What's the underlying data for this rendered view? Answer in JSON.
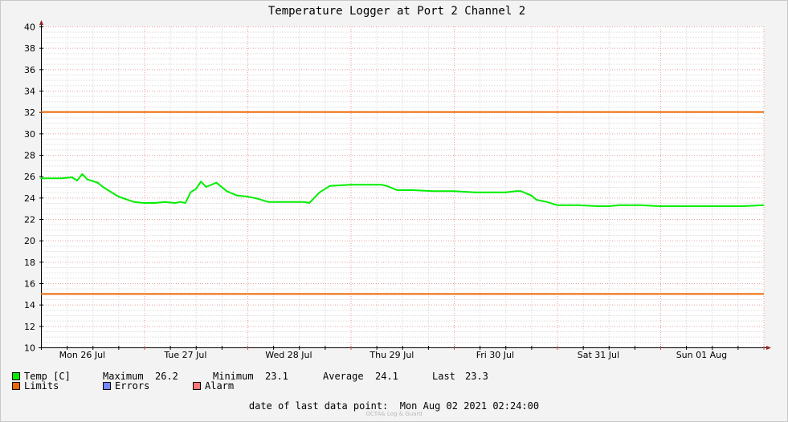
{
  "chart_data": {
    "type": "line",
    "title": "Temperature Logger at Port 2 Channel 2",
    "ylim": [
      10,
      40
    ],
    "yticks": [
      10,
      12,
      14,
      16,
      18,
      20,
      22,
      24,
      26,
      28,
      30,
      32,
      34,
      36,
      38,
      40
    ],
    "xlabels": [
      "Mon 26 Jul",
      "Tue 27 Jul",
      "Wed 28 Jul",
      "Thu 29 Jul",
      "Fri 30 Jul",
      "Sat 31 Jul",
      "Sun 01 Aug"
    ],
    "grid": true,
    "x_days": [
      0,
      0.2,
      0.3,
      0.35,
      0.4,
      0.45,
      0.55,
      0.6,
      0.7,
      0.75,
      0.9,
      1.0,
      1.1,
      1.2,
      1.3,
      1.35,
      1.4,
      1.45,
      1.5,
      1.55,
      1.6,
      1.7,
      1.8,
      1.9,
      2.0,
      2.1,
      2.2,
      2.3,
      2.4,
      2.5,
      2.55,
      2.6,
      2.65,
      2.7,
      2.8,
      3.0,
      3.2,
      3.3,
      3.35,
      3.45,
      3.6,
      3.8,
      4.0,
      4.2,
      4.4,
      4.5,
      4.6,
      4.65,
      4.75,
      4.8,
      4.9,
      5.0,
      5.2,
      5.4,
      5.5,
      5.6,
      5.8,
      6.0,
      6.2,
      6.4,
      6.6,
      6.8,
      7.0
    ],
    "series": [
      {
        "name": "Temp [C]",
        "color": "#00ee00",
        "values": [
          25.8,
          25.8,
          25.9,
          25.6,
          26.2,
          25.7,
          25.4,
          25.0,
          24.4,
          24.1,
          23.6,
          23.5,
          23.5,
          23.6,
          23.5,
          23.6,
          23.5,
          24.5,
          24.8,
          25.5,
          25.0,
          25.4,
          24.6,
          24.2,
          24.1,
          23.9,
          23.6,
          23.6,
          23.6,
          23.6,
          23.6,
          23.5,
          24.0,
          24.5,
          25.1,
          25.2,
          25.2,
          25.2,
          25.1,
          24.7,
          24.7,
          24.6,
          24.6,
          24.5,
          24.5,
          24.5,
          24.6,
          24.6,
          24.2,
          23.8,
          23.6,
          23.3,
          23.3,
          23.2,
          23.2,
          23.3,
          23.3,
          23.2,
          23.2,
          23.2,
          23.2,
          23.2,
          23.3
        ]
      },
      {
        "name": "Limits",
        "color": "#ee6600",
        "values": [
          32,
          15
        ]
      }
    ]
  },
  "legend": {
    "temp_label": "Temp [C]",
    "temp_color": "#00ee00",
    "limits_label": "Limits",
    "limits_color": "#ee6600",
    "errors_label": "Errors",
    "errors_color": "#7788ff",
    "alarm_label": "Alarm",
    "alarm_color": "#ff7777",
    "stats": {
      "max_label": "Maximum",
      "max_value": "26.2",
      "min_label": "Minimum",
      "min_value": "23.1",
      "avg_label": "Average",
      "avg_value": "24.1",
      "last_label": "Last",
      "last_value": "23.3"
    }
  },
  "footer": {
    "last_data_label": "date of last data point:",
    "last_data_value": "Mon Aug 02 2021 02:24:00",
    "watermark": "OCTA& Log & Guard"
  }
}
